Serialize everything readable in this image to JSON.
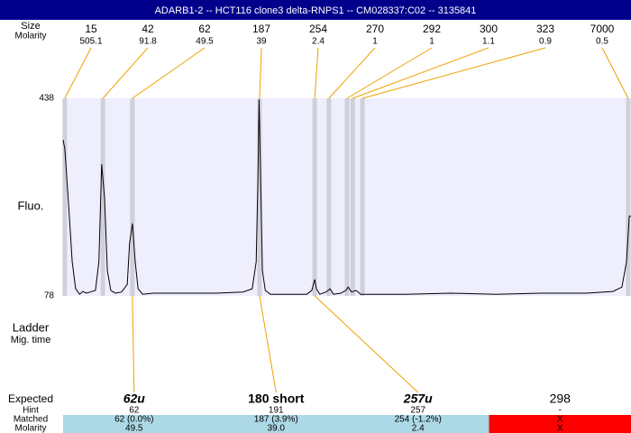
{
  "chart_data": {
    "type": "line",
    "title": "ADARB1-2 -- HCT116 clone3 delta-RNPS1 -- CM028337:C02 -- 3135841",
    "y_label": "Fluo.",
    "x_label": "Ladder",
    "x_sublabel": "Mig. time",
    "ylim": [
      78,
      438
    ],
    "yticks": [
      78,
      438
    ],
    "xlim": [
      0,
      100
    ],
    "x": [
      0,
      0.3,
      1.0,
      1.6,
      2.2,
      2.9,
      3.5,
      4.1,
      4.8,
      5.7,
      6.3,
      6.8,
      7.3,
      7.8,
      8.4,
      9.2,
      10.3,
      11.3,
      11.7,
      12.2,
      12.7,
      13.2,
      14.0,
      15.9,
      20.6,
      27.0,
      31.7,
      33.3,
      34.0,
      34.3,
      34.5,
      34.8,
      35.1,
      35.6,
      36.5,
      42.9,
      43.8,
      44.3,
      44.6,
      45.2,
      46.3,
      47.0,
      47.6,
      48.9,
      49.8,
      50.2,
      50.8,
      51.6,
      52.4,
      54.0,
      60.3,
      68.3,
      76.2,
      84.1,
      92.1,
      96.8,
      98.4,
      99.2,
      99.7,
      100
    ],
    "series": [
      {
        "color": "#000000",
        "values": [
          362,
          346,
          239,
          140,
          91,
          81,
          86,
          83,
          85,
          88,
          140,
          318,
          256,
          124,
          88,
          83,
          85,
          99,
          173,
          210,
          140,
          91,
          81,
          83,
          83,
          83,
          85,
          91,
          140,
          288,
          436,
          288,
          124,
          88,
          81,
          81,
          88,
          108,
          91,
          81,
          85,
          91,
          81,
          83,
          88,
          94,
          85,
          88,
          81,
          81,
          81,
          83,
          81,
          83,
          83,
          86,
          94,
          140,
          223,
          223
        ]
      }
    ],
    "background": "#eeeefc",
    "peaks": {
      "labels": [
        "Size",
        "Molarity"
      ],
      "color": "#d0d0dc",
      "leader_color": "#f0a000",
      "x": [
        0.3,
        7.0,
        12.2,
        34.6,
        44.3,
        46.8,
        50.0,
        51.0,
        52.7,
        99.5
      ],
      "sizes": [
        15,
        42,
        62,
        187,
        254,
        270,
        292,
        300,
        323,
        7000
      ],
      "molarities": [
        505.1,
        91.8,
        49.5,
        39,
        2.4,
        1,
        1,
        1.1,
        0.9,
        0.5
      ]
    },
    "expected": {
      "row_labels": [
        "Expected",
        "Hint",
        "Matched",
        "Molarity"
      ],
      "columns": [
        {
          "expected": "62u",
          "style": "bold italic",
          "hint": "62",
          "matched": "62 (0.0%)",
          "molarity": "49.5",
          "color": "#add8e6"
        },
        {
          "expected": "180 short",
          "style": "bold",
          "hint": "191",
          "matched": "187 (3.9%)",
          "molarity": "39.0",
          "color": "#add8e6"
        },
        {
          "expected": "257u",
          "style": "bold italic",
          "hint": "257",
          "matched": "254 (-1.2%)",
          "molarity": "2.4",
          "color": "#add8e6"
        },
        {
          "expected": "298",
          "style": "normal",
          "hint": "-",
          "matched": "X",
          "molarity": "X",
          "color": "#ff0000"
        }
      ]
    }
  }
}
